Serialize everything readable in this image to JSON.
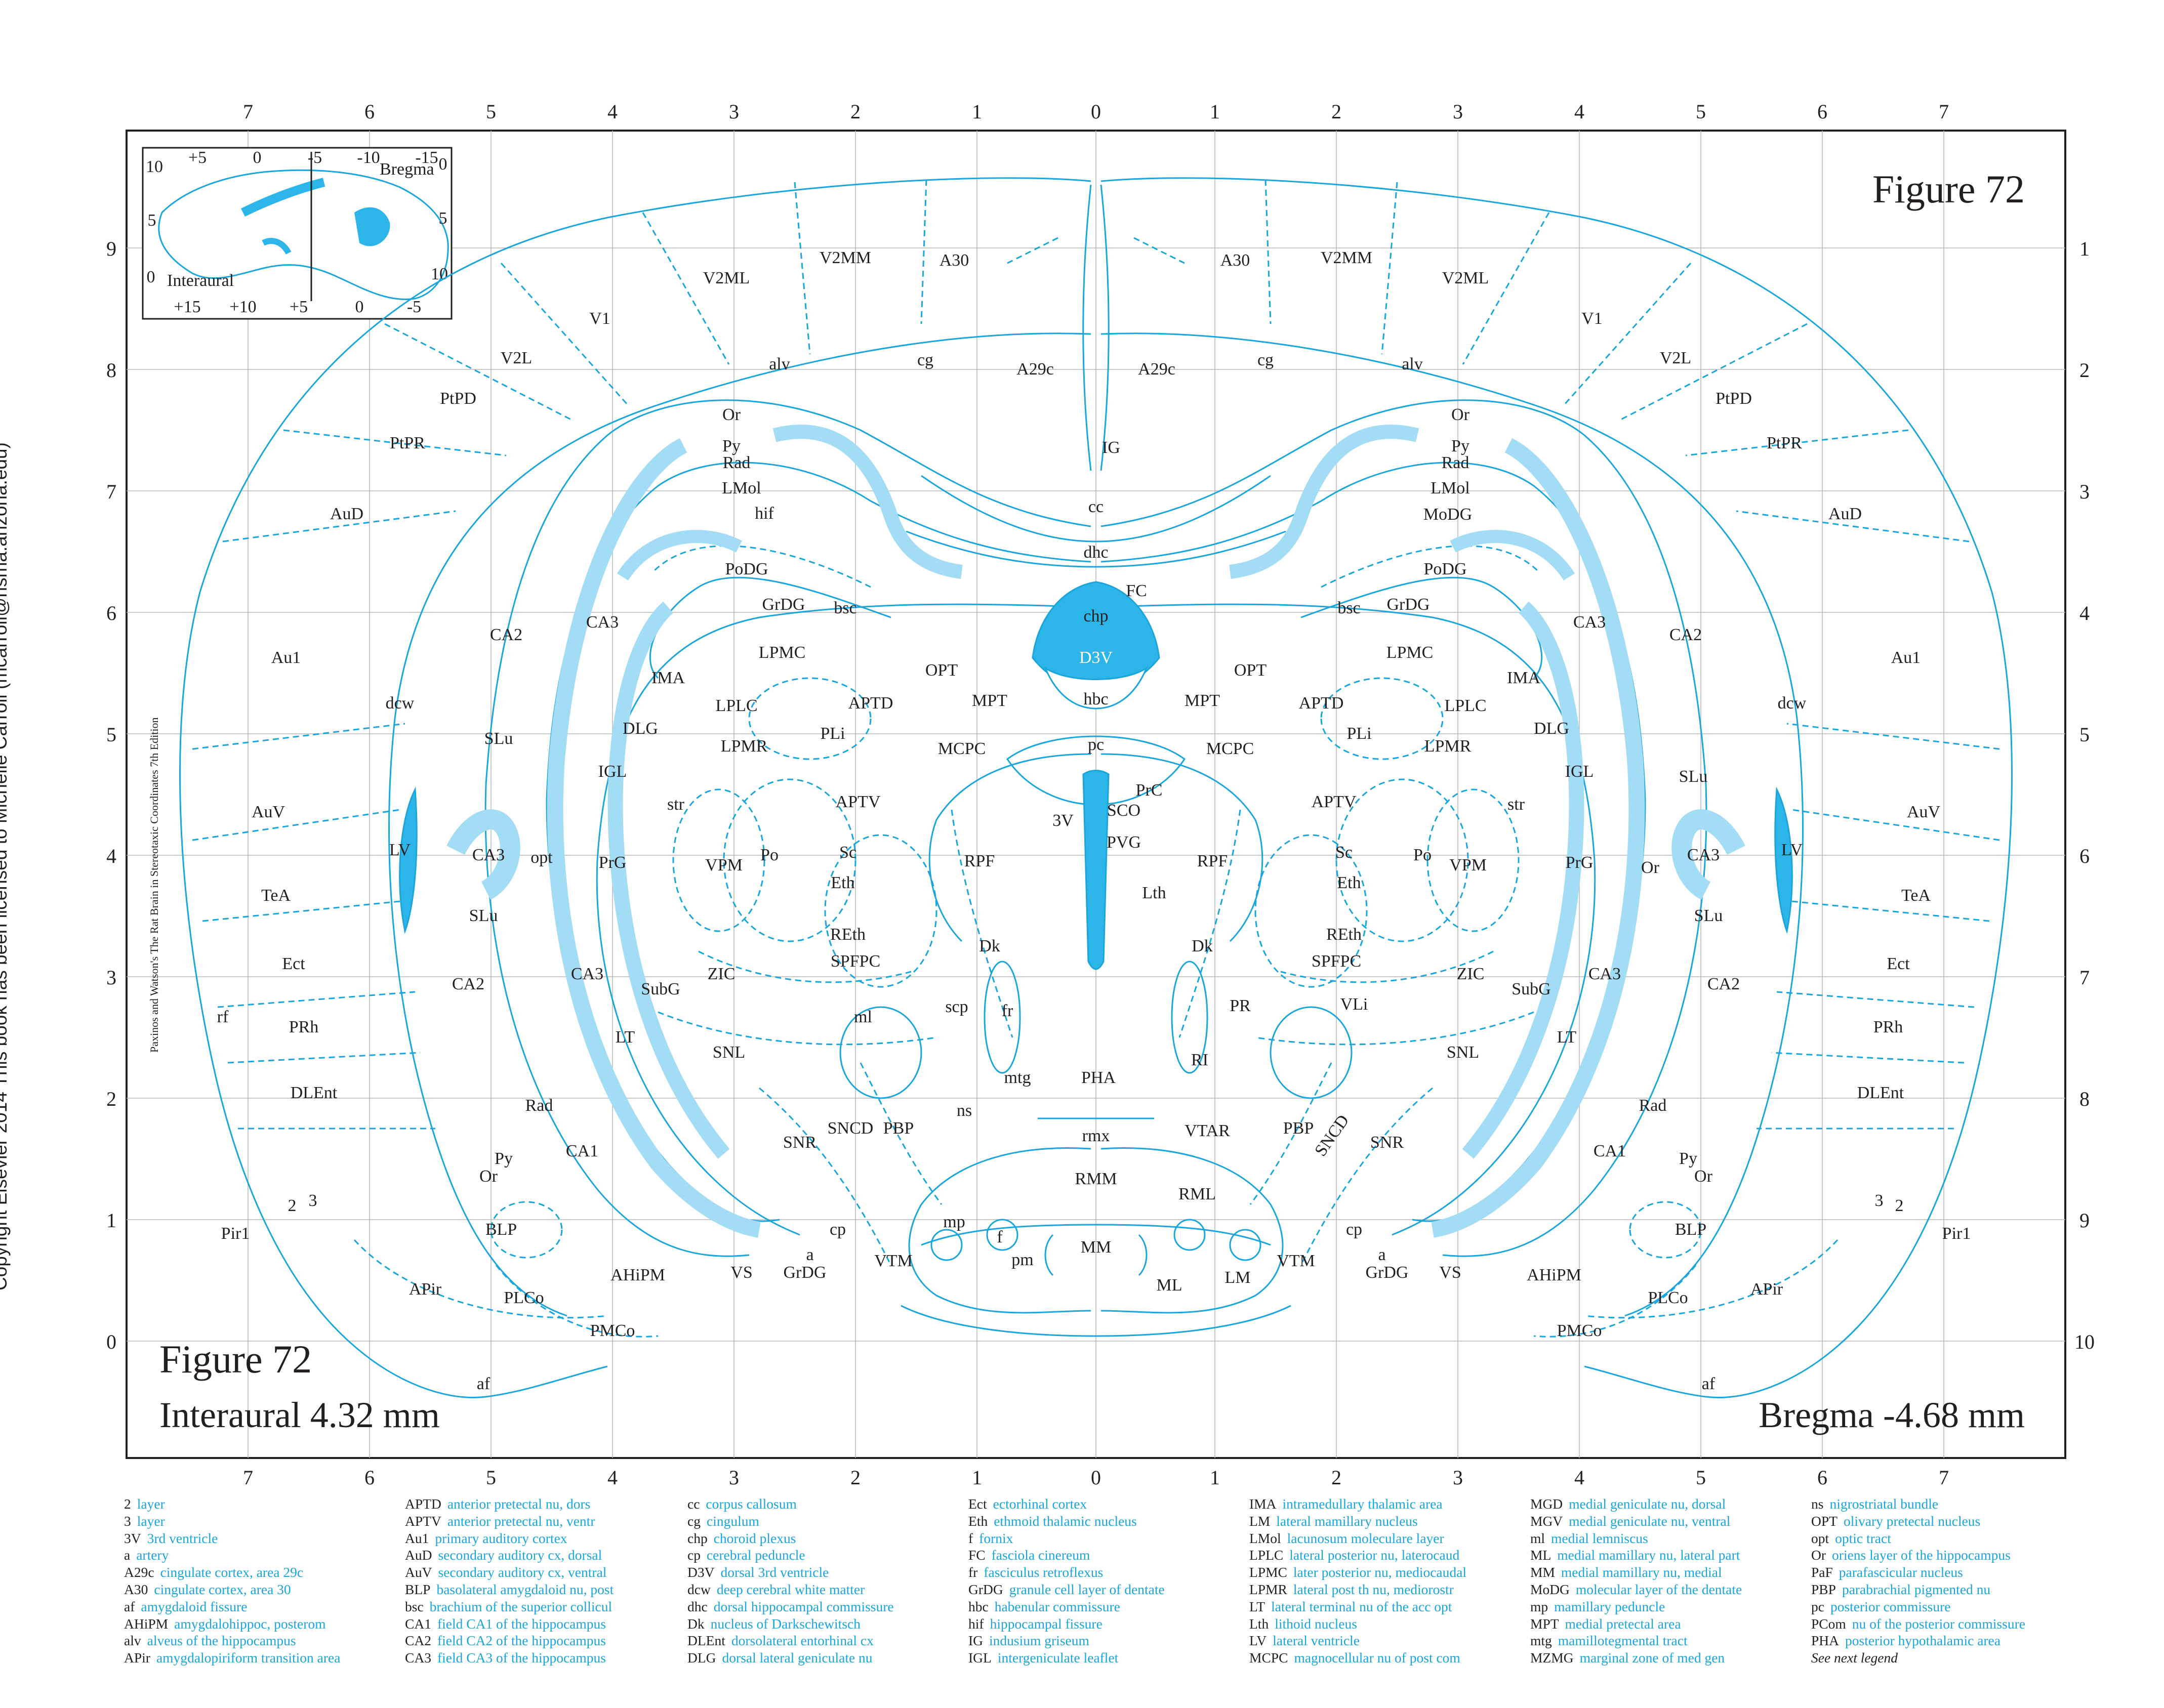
{
  "figure": {
    "title": "Figure 72",
    "interaural": "Interaural 4.32 mm",
    "bregma": "Bregma -4.68 mm"
  },
  "colors": {
    "line": "#1aa6db",
    "fill_dark": "#2bb5e8",
    "fill_light": "#a3dcf5",
    "text": "#231f20"
  },
  "copyright": "Copyright Elsevier 2014 This book has been licensed to Michelle Carroll (mcarroll@nsma.arizona.edu)",
  "book": "Paxinos and Watson's The Rat Brain in Stereotaxic Coordinates   7th Edition",
  "ruler": {
    "top": [
      "7",
      "6",
      "5",
      "4",
      "3",
      "2",
      "1",
      "0",
      "1",
      "2",
      "3",
      "4",
      "5",
      "6",
      "7"
    ],
    "bottom": [
      "7",
      "6",
      "5",
      "4",
      "3",
      "2",
      "1",
      "0",
      "1",
      "2",
      "3",
      "4",
      "5",
      "6",
      "7"
    ],
    "left": [
      "9",
      "8",
      "7",
      "6",
      "5",
      "4",
      "3",
      "2",
      "1",
      "0"
    ],
    "right": [
      "1",
      "2",
      "3",
      "4",
      "5",
      "6",
      "7",
      "8",
      "9",
      "10"
    ]
  },
  "inset": {
    "bregma_label": "Bregma",
    "interaural_label": "Interaural",
    "top_ticks": [
      "+5",
      "0",
      "-5",
      "-10",
      "-15"
    ],
    "bottom_ticks": [
      "+15",
      "+10",
      "+5",
      "0",
      "-5"
    ],
    "left_ticks": [
      "10",
      "5",
      "0"
    ],
    "right_ticks": [
      "0",
      "5",
      "10"
    ]
  },
  "regions": {
    "V1": "V1",
    "V2ML": "V2ML",
    "V2MM": "V2MM",
    "A30": "A30",
    "V2L": "V2L",
    "PtPD": "PtPD",
    "PtPR": "PtPR",
    "AuD": "AuD",
    "Au1": "Au1",
    "AuV": "AuV",
    "TeA": "TeA",
    "Ect": "Ect",
    "PRh": "PRh",
    "DLEnt": "DLEnt",
    "Pir1": "Pir1",
    "APir": "APir",
    "dcw": "dcw",
    "rf": "rf",
    "af": "af",
    "n2": "2",
    "n3": "3",
    "alv": "alv",
    "cg": "cg",
    "A29c": "A29c",
    "IG": "IG",
    "cc": "cc",
    "dhc": "dhc",
    "FC": "FC",
    "chp": "chp",
    "D3V": "D3V",
    "hbc": "hbc",
    "pc": "pc",
    "PrC": "PrC",
    "SCO": "SCO",
    "n3V": "3V",
    "PVG": "PVG",
    "Lth": "Lth",
    "Or": "Or",
    "Py": "Py",
    "Rad": "Rad",
    "LMol": "LMol",
    "MoDG": "MoDG",
    "hif": "hif",
    "PoDG": "PoDG",
    "GrDG": "GrDG",
    "bsc": "bsc",
    "CA1": "CA1",
    "CA2": "CA2",
    "CA3": "CA3",
    "SLu": "SLu",
    "LV": "LV",
    "LPMC": "LPMC",
    "IMA": "IMA",
    "LPLC": "LPLC",
    "DLG": "DLG",
    "APTD": "APTD",
    "OPT": "OPT",
    "MPT": "MPT",
    "PLi": "PLi",
    "LPMR": "LPMR",
    "MCPC": "MCPC",
    "IGL": "IGL",
    "APTV": "APTV",
    "str": "str",
    "opt": "opt",
    "PrG": "PrG",
    "VPM": "VPM",
    "Po": "Po",
    "Sc": "Sc",
    "Eth": "Eth",
    "RPF": "RPF",
    "REth": "REth",
    "SPFPC": "SPFPC",
    "Dk": "Dk",
    "ZIC": "ZIC",
    "SubG": "SubG",
    "LT": "LT",
    "ml": "ml",
    "scp": "scp",
    "fr": "fr",
    "PR": "PR",
    "VLi": "VLi",
    "RI": "RI",
    "SNL": "SNL",
    "mtg": "mtg",
    "PHA": "PHA",
    "ns": "ns",
    "SNCD": "SNCD",
    "PBP": "PBP",
    "SNR": "SNR",
    "rmx": "rmx",
    "VTAR": "VTAR",
    "RMM": "RMM",
    "RML": "RML",
    "mp": "mp",
    "cp": "cp",
    "a": "a",
    "VS": "VS",
    "BLP": "BLP",
    "AHiPM": "AHiPM",
    "PLCo": "PLCo",
    "PMCo": "PMCo",
    "VTM": "VTM",
    "f": "f",
    "pm": "pm",
    "MM": "MM",
    "ML": "ML",
    "LM": "LM"
  },
  "legend": [
    [
      [
        "2",
        "layer"
      ],
      [
        "3",
        "layer"
      ],
      [
        "3V",
        "3rd ventricle"
      ],
      [
        "a",
        "artery"
      ],
      [
        "A29c",
        "cingulate cortex, area 29c"
      ],
      [
        "A30",
        "cingulate cortex, area 30"
      ],
      [
        "af",
        "amygdaloid fissure"
      ],
      [
        "AHiPM",
        "amygdalohippoc, posterom"
      ],
      [
        "alv",
        "alveus of the hippocampus"
      ],
      [
        "APir",
        "amygdalopiriform transition area"
      ]
    ],
    [
      [
        "APTD",
        "anterior pretectal nu, dors"
      ],
      [
        "APTV",
        "anterior pretectal nu, ventr"
      ],
      [
        "Au1",
        "primary auditory cortex"
      ],
      [
        "AuD",
        "secondary auditory cx, dorsal"
      ],
      [
        "AuV",
        "secondary auditory cx, ventral"
      ],
      [
        "BLP",
        "basolateral amygdaloid nu, post"
      ],
      [
        "bsc",
        "brachium of the superior collicul"
      ],
      [
        "CA1",
        "field CA1 of the hippocampus"
      ],
      [
        "CA2",
        "field CA2 of the hippocampus"
      ],
      [
        "CA3",
        "field CA3 of the hippocampus"
      ]
    ],
    [
      [
        "cc",
        "corpus callosum"
      ],
      [
        "cg",
        "cingulum"
      ],
      [
        "chp",
        "choroid plexus"
      ],
      [
        "cp",
        "cerebral peduncle"
      ],
      [
        "D3V",
        "dorsal 3rd ventricle"
      ],
      [
        "dcw",
        "deep cerebral white matter"
      ],
      [
        "dhc",
        "dorsal hippocampal commissure"
      ],
      [
        "Dk",
        "nucleus of Darkschewitsch"
      ],
      [
        "DLEnt",
        "dorsolateral entorhinal cx"
      ],
      [
        "DLG",
        "dorsal lateral geniculate nu"
      ]
    ],
    [
      [
        "Ect",
        "ectorhinal cortex"
      ],
      [
        "Eth",
        "ethmoid thalamic nucleus"
      ],
      [
        "f",
        "fornix"
      ],
      [
        "FC",
        "fasciola cinereum"
      ],
      [
        "fr",
        "fasciculus retroflexus"
      ],
      [
        "GrDG",
        "granule cell layer of dentate"
      ],
      [
        "hbc",
        "habenular commissure"
      ],
      [
        "hif",
        "hippocampal fissure"
      ],
      [
        "IG",
        "indusium griseum"
      ],
      [
        "IGL",
        "intergeniculate leaflet"
      ]
    ],
    [
      [
        "IMA",
        "intramedullary thalamic area"
      ],
      [
        "LM",
        "lateral mamillary nucleus"
      ],
      [
        "LMol",
        "lacunosum moleculare layer"
      ],
      [
        "LPLC",
        "lateral posterior nu, laterocaud"
      ],
      [
        "LPMC",
        "later posterior nu, mediocaudal"
      ],
      [
        "LPMR",
        "lateral post th nu, mediorostr"
      ],
      [
        "LT",
        "lateral terminal nu of the acc opt"
      ],
      [
        "Lth",
        "lithoid nucleus"
      ],
      [
        "LV",
        "lateral ventricle"
      ],
      [
        "MCPC",
        "magnocellular nu of post com"
      ]
    ],
    [
      [
        "MGD",
        "medial geniculate nu, dorsal"
      ],
      [
        "MGV",
        "medial geniculate nu, ventral"
      ],
      [
        "ml",
        "medial lemniscus"
      ],
      [
        "ML",
        "medial mamillary nu, lateral part"
      ],
      [
        "MM",
        "medial mamillary nu, medial"
      ],
      [
        "MoDG",
        "molecular layer of the dentate"
      ],
      [
        "mp",
        "mamillary peduncle"
      ],
      [
        "MPT",
        "medial pretectal area"
      ],
      [
        "mtg",
        "mamillotegmental tract"
      ],
      [
        "MZMG",
        "marginal zone of med gen"
      ]
    ],
    [
      [
        "ns",
        "nigrostriatal bundle"
      ],
      [
        "OPT",
        "olivary pretectal nucleus"
      ],
      [
        "opt",
        "optic tract"
      ],
      [
        "Or",
        "oriens layer of the hippocampus"
      ],
      [
        "PaF",
        "parafascicular nucleus"
      ],
      [
        "PBP",
        "parabrachial pigmented nu"
      ],
      [
        "pc",
        "posterior commissure"
      ],
      [
        "PCom",
        "nu of the posterior commissure"
      ],
      [
        "PHA",
        "posterior hypothalamic area"
      ]
    ]
  ],
  "legend_note": "See next legend"
}
